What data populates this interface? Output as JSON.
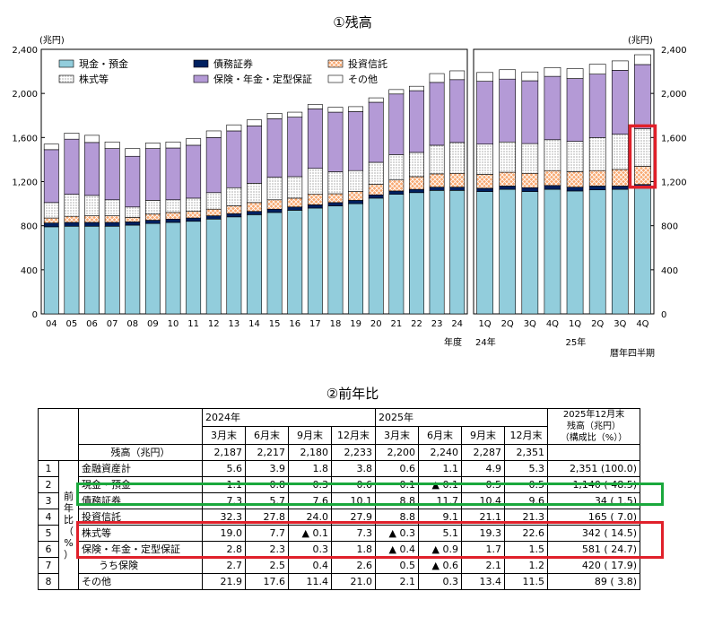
{
  "chart_data": {
    "type": "bar",
    "title": "①残高",
    "ylabel": "(兆円)",
    "ylim": [
      0,
      2400
    ],
    "yticks": [
      "0",
      "400",
      "800",
      "1,200",
      "1,600",
      "2,000",
      "2,400"
    ],
    "legend": [
      {
        "name": "現金・預金",
        "color": "#92cddc"
      },
      {
        "name": "債務証券",
        "color": "#002060"
      },
      {
        "name": "投資信託",
        "color": "#f8a870"
      },
      {
        "name": "株式等",
        "color": "#ececec"
      },
      {
        "name": "保険・年金・定型保証",
        "color": "#b49ad6"
      },
      {
        "name": "その他",
        "color": "#ffffff"
      }
    ],
    "annual": {
      "categories": [
        "04",
        "05",
        "06",
        "07",
        "08",
        "09",
        "10",
        "11",
        "12",
        "13",
        "14",
        "15",
        "16",
        "17",
        "18",
        "19",
        "20",
        "21",
        "22",
        "23",
        "24"
      ],
      "xlabel": "年度",
      "series": [
        {
          "name": "現金・預金",
          "values": [
            790,
            795,
            795,
            795,
            805,
            820,
            830,
            840,
            860,
            880,
            900,
            920,
            940,
            960,
            980,
            1000,
            1050,
            1085,
            1100,
            1120,
            1120
          ]
        },
        {
          "name": "債務証券",
          "values": [
            35,
            35,
            35,
            35,
            30,
            30,
            30,
            30,
            30,
            30,
            30,
            30,
            30,
            30,
            30,
            30,
            30,
            30,
            30,
            30,
            30
          ]
        },
        {
          "name": "投資信託",
          "values": [
            45,
            55,
            60,
            60,
            40,
            55,
            60,
            60,
            60,
            70,
            80,
            85,
            80,
            95,
            80,
            80,
            95,
            100,
            115,
            120,
            125
          ]
        },
        {
          "name": "株式等",
          "values": [
            140,
            200,
            185,
            145,
            95,
            125,
            115,
            120,
            150,
            165,
            175,
            205,
            195,
            235,
            200,
            190,
            200,
            230,
            220,
            260,
            280
          ]
        },
        {
          "name": "保険・年金・定型保証",
          "values": [
            480,
            500,
            480,
            465,
            460,
            470,
            470,
            480,
            500,
            515,
            520,
            530,
            540,
            540,
            540,
            535,
            545,
            550,
            560,
            570,
            570
          ]
        },
        {
          "name": "その他",
          "values": [
            50,
            55,
            65,
            60,
            70,
            50,
            55,
            60,
            60,
            55,
            55,
            50,
            45,
            40,
            45,
            45,
            40,
            40,
            40,
            80,
            80
          ]
        }
      ]
    },
    "quarterly": {
      "categories": [
        "1Q",
        "2Q",
        "3Q",
        "4Q",
        "1Q",
        "2Q",
        "3Q",
        "4Q"
      ],
      "year_labels": [
        {
          "label": "24年",
          "at": 0
        },
        {
          "label": "25年",
          "at": 4
        }
      ],
      "xlabel": "暦年四半期",
      "ylabel": "(兆円)",
      "series": [
        {
          "name": "現金・預金",
          "values": [
            1110,
            1130,
            1110,
            1130,
            1115,
            1125,
            1130,
            1140
          ]
        },
        {
          "name": "債務証券",
          "values": [
            30,
            30,
            35,
            35,
            35,
            35,
            30,
            34
          ]
        },
        {
          "name": "投資信託",
          "values": [
            125,
            125,
            130,
            135,
            140,
            140,
            150,
            165
          ]
        },
        {
          "name": "株式等",
          "values": [
            275,
            275,
            270,
            280,
            275,
            300,
            320,
            342
          ]
        },
        {
          "name": "保険・年金・定型保証",
          "values": [
            570,
            570,
            570,
            575,
            570,
            575,
            580,
            581
          ]
        },
        {
          "name": "その他",
          "values": [
            80,
            85,
            80,
            80,
            90,
            90,
            85,
            89
          ]
        }
      ]
    }
  },
  "table": {
    "title": "②前年比",
    "years": [
      "2024年",
      "2025年"
    ],
    "quarters": [
      "3月末",
      "6月末",
      "9月末",
      "12月末",
      "3月末",
      "6月末",
      "9月末",
      "12月末"
    ],
    "latest_header": [
      "2025年12月末",
      "残高（兆円）",
      "（構成比（%））"
    ],
    "side_label": [
      "前",
      "年",
      "比",
      "（",
      "%",
      "）"
    ],
    "balance_row": {
      "label": "残高（兆円）",
      "values": [
        "2,187",
        "2,217",
        "2,180",
        "2,233",
        "2,200",
        "2,240",
        "2,287",
        "2,351"
      ]
    },
    "rows": [
      {
        "no": "1",
        "label": "金融資産計",
        "values": [
          "5.6",
          "3.9",
          "1.8",
          "3.8",
          "0.6",
          "1.1",
          "4.9",
          "5.3"
        ],
        "latest": "2,351 (100.0)"
      },
      {
        "no": "2",
        "label": "現金・預金",
        "values": [
          "1.1",
          "0.8",
          "0.3",
          "0.6",
          "0.1",
          "▲ 0.1",
          "0.5",
          "0.5"
        ],
        "latest": "1,140 ( 48.5)"
      },
      {
        "no": "3",
        "label": "債務証券",
        "values": [
          "7.3",
          "5.7",
          "7.6",
          "10.1",
          "8.8",
          "11.7",
          "10.4",
          "9.6"
        ],
        "latest": "34 ( 1.5)"
      },
      {
        "no": "4",
        "label": "投資信託",
        "values": [
          "32.3",
          "27.8",
          "24.0",
          "27.9",
          "8.8",
          "9.1",
          "21.1",
          "21.3"
        ],
        "latest": "165 ( 7.0)"
      },
      {
        "no": "5",
        "label": "株式等",
        "values": [
          "19.0",
          "7.7",
          "▲ 0.1",
          "7.3",
          "▲ 0.3",
          "5.1",
          "19.3",
          "22.6"
        ],
        "latest": "342 ( 14.5)"
      },
      {
        "no": "6",
        "label": "保険・年金・定型保証",
        "values": [
          "2.8",
          "2.3",
          "0.3",
          "1.8",
          "▲ 0.4",
          "▲ 0.9",
          "1.7",
          "1.5"
        ],
        "latest": "581 ( 24.7)"
      },
      {
        "no": "7",
        "label": "うち保険",
        "values": [
          "2.7",
          "2.5",
          "0.4",
          "2.6",
          "0.5",
          "▲ 0.6",
          "2.1",
          "1.2"
        ],
        "latest": "420 ( 17.9)"
      },
      {
        "no": "8",
        "label": "その他",
        "values": [
          "21.9",
          "17.6",
          "11.4",
          "21.0",
          "2.1",
          "0.3",
          "13.4",
          "11.5"
        ],
        "latest": "89 ( 3.8)"
      }
    ]
  },
  "highlight_colors": {
    "red": "#e0202a",
    "green": "#1aa83c"
  }
}
